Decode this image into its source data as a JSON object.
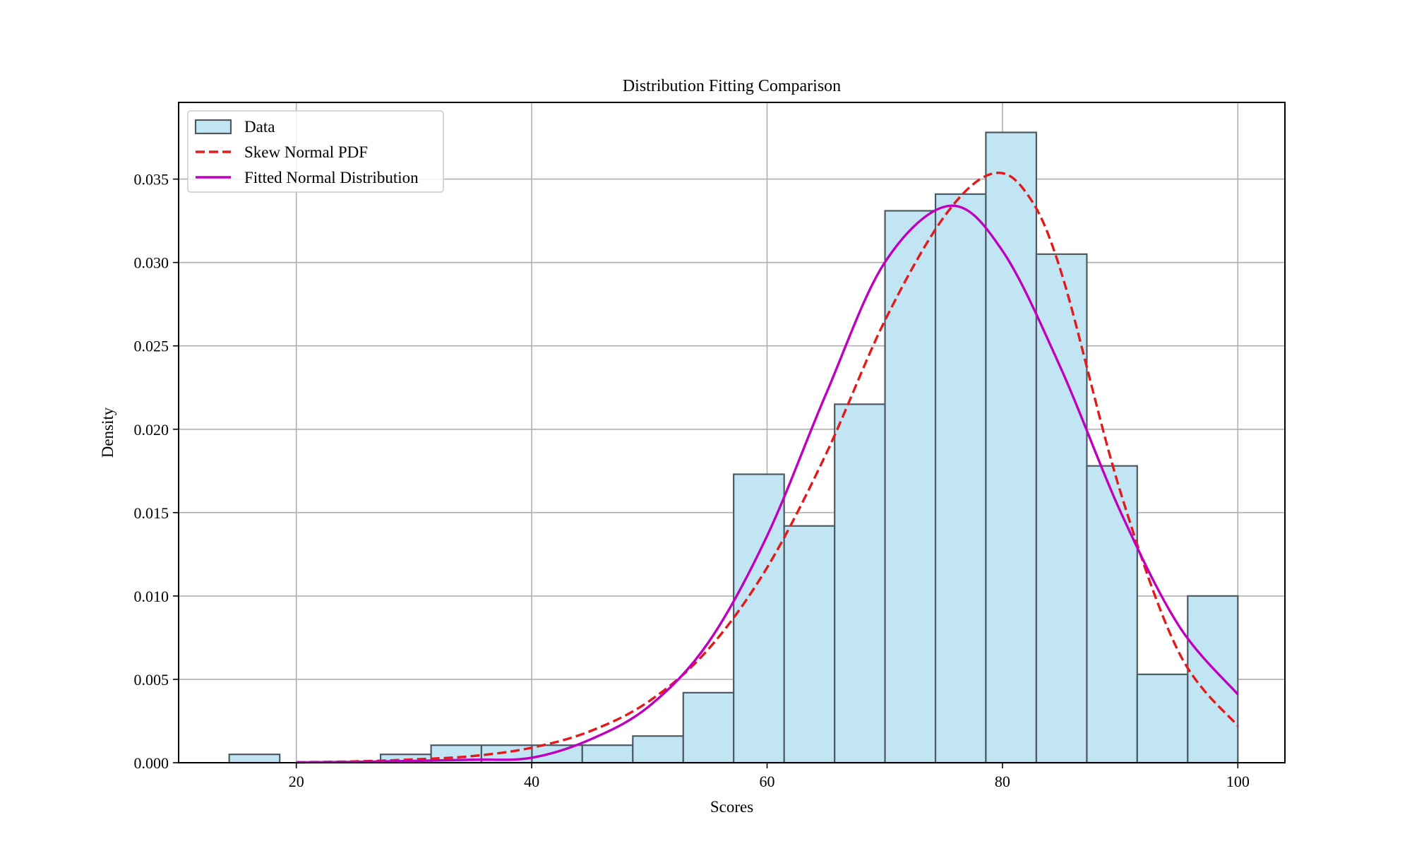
{
  "chart_data": {
    "type": "bar",
    "title": "Distribution Fitting Comparison",
    "xlabel": "Scores",
    "ylabel": "Density",
    "xlim": [
      10,
      104
    ],
    "ylim": [
      0,
      0.0396
    ],
    "xticks": [
      20,
      40,
      60,
      80,
      100
    ],
    "yticks": [
      0.0,
      0.005,
      0.01,
      0.015,
      0.02,
      0.025,
      0.03,
      0.035
    ],
    "ytick_labels": [
      "0.000",
      "0.005",
      "0.010",
      "0.015",
      "0.020",
      "0.025",
      "0.030",
      "0.035"
    ],
    "grid": true,
    "legend_position": "top-left",
    "legend": [
      {
        "label": "Data",
        "kind": "patch"
      },
      {
        "label": "Skew Normal PDF",
        "kind": "dashed-line"
      },
      {
        "label": "Fitted Normal Distribution",
        "kind": "line"
      }
    ],
    "histogram": {
      "name": "Data",
      "bin_edges": [
        14.3,
        18.59,
        22.87,
        27.16,
        31.45,
        35.73,
        40.02,
        44.3,
        48.59,
        52.88,
        57.16,
        61.45,
        65.74,
        70.02,
        74.31,
        78.59,
        82.88,
        87.17,
        91.45,
        95.74,
        100.0
      ],
      "values": [
        0.0005,
        0.0,
        0.0,
        0.0005,
        0.00105,
        0.00105,
        0.00105,
        0.00105,
        0.0016,
        0.0042,
        0.0173,
        0.0142,
        0.0215,
        0.0331,
        0.0341,
        0.0378,
        0.0305,
        0.0178,
        0.0053,
        0.01
      ],
      "color": "#c2e5f3",
      "edgecolor": "#4d5a63"
    },
    "series": [
      {
        "name": "Skew Normal PDF",
        "style": "dashed",
        "color": "#e31a1c",
        "x": [
          20,
          25,
          30,
          35,
          40,
          45,
          50,
          55,
          60,
          65,
          70,
          75,
          79,
          82,
          85,
          90,
          95,
          100
        ],
        "values": [
          3e-05,
          8e-05,
          0.0002,
          0.0004,
          0.0009,
          0.0019,
          0.0037,
          0.0068,
          0.0117,
          0.0185,
          0.0265,
          0.0327,
          0.0353,
          0.0342,
          0.0294,
          0.0163,
          0.0066,
          0.0022
        ]
      },
      {
        "name": "Fitted Normal Distribution",
        "style": "solid",
        "color": "#bf00bf",
        "x": [
          20,
          25,
          30,
          35,
          40,
          45,
          50,
          55,
          60,
          65,
          70,
          75.5,
          80,
          85,
          90,
          95,
          100
        ],
        "values": [
          2e-05,
          5e-05,
          0.00011,
          0.00018,
          0.0003,
          0.0014,
          0.0034,
          0.0072,
          0.0136,
          0.0221,
          0.03,
          0.0334,
          0.0307,
          0.0236,
          0.0151,
          0.0082,
          0.0041
        ]
      }
    ]
  }
}
